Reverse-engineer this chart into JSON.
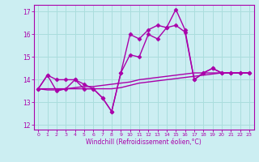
{
  "xlabel": "Windchill (Refroidissement éolien,°C)",
  "bg_color": "#cceef2",
  "grid_color": "#aadddd",
  "line_color": "#aa00aa",
  "xlim": [
    -0.5,
    23.5
  ],
  "ylim": [
    11.8,
    17.3
  ],
  "yticks": [
    12,
    13,
    14,
    15,
    16,
    17
  ],
  "xticks": [
    0,
    1,
    2,
    3,
    4,
    5,
    6,
    7,
    8,
    9,
    10,
    11,
    12,
    13,
    14,
    15,
    16,
    17,
    18,
    19,
    20,
    21,
    22,
    23
  ],
  "series": [
    {
      "y": [
        13.6,
        14.2,
        13.5,
        13.6,
        14.0,
        13.6,
        13.6,
        13.2,
        12.6,
        14.3,
        16.0,
        15.8,
        16.2,
        16.4,
        16.3,
        17.1,
        16.2,
        14.0,
        14.3,
        14.5,
        14.3,
        14.3,
        14.3,
        14.3
      ],
      "marker": "D",
      "ms": 2.5,
      "lw": 1.0
    },
    {
      "y": [
        13.6,
        13.55,
        13.55,
        13.6,
        13.65,
        13.7,
        13.7,
        13.75,
        13.8,
        13.85,
        13.9,
        14.0,
        14.05,
        14.1,
        14.15,
        14.2,
        14.25,
        14.3,
        14.3,
        14.3,
        14.3,
        14.3,
        14.3,
        14.3
      ],
      "marker": null,
      "ms": 0,
      "lw": 1.0
    },
    {
      "y": [
        13.6,
        13.6,
        13.6,
        13.6,
        13.6,
        13.6,
        13.6,
        13.6,
        13.6,
        13.65,
        13.75,
        13.85,
        13.9,
        13.95,
        14.0,
        14.05,
        14.1,
        14.15,
        14.2,
        14.25,
        14.3,
        14.3,
        14.3,
        14.3
      ],
      "marker": null,
      "ms": 0,
      "lw": 1.0
    },
    {
      "y": [
        13.6,
        14.2,
        14.0,
        14.0,
        14.0,
        13.8,
        13.6,
        13.2,
        12.6,
        14.3,
        15.1,
        15.0,
        16.0,
        15.8,
        16.3,
        16.4,
        16.1,
        14.0,
        14.3,
        14.5,
        14.3,
        14.3,
        14.3,
        14.3
      ],
      "marker": "D",
      "ms": 2.5,
      "lw": 1.0
    }
  ]
}
